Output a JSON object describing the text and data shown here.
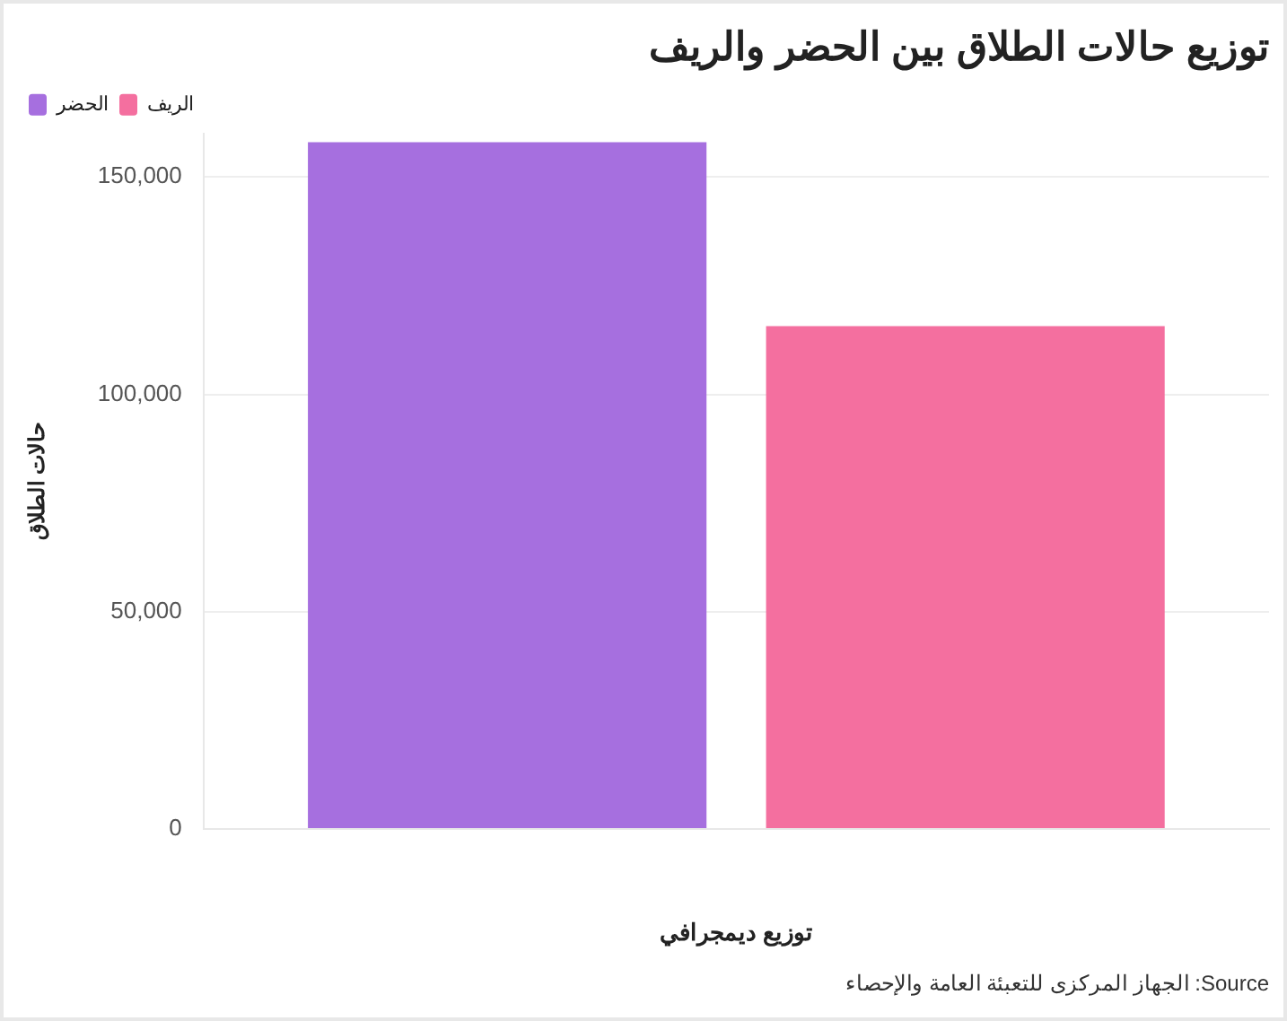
{
  "chart_data": {
    "type": "bar",
    "title": "توزيع حالات الطلاق بين الحضر والريف",
    "xlabel": "توزيع ديمجرافي",
    "ylabel": "حالات الطلاق",
    "categories": [
      null
    ],
    "series": [
      {
        "name": "الحضر",
        "color": "#a66fdf",
        "values": [
          158000
        ]
      },
      {
        "name": "الريف",
        "color": "#f46f9f",
        "values": [
          115700
        ]
      }
    ],
    "ylim": [
      0,
      160000
    ],
    "yticks": [
      {
        "value": 0,
        "label": "0"
      },
      {
        "value": 50000,
        "label": "50,000"
      },
      {
        "value": 100000,
        "label": "100,000"
      },
      {
        "value": 150000,
        "label": "150,000"
      }
    ],
    "grid": "y",
    "legend": "top left",
    "annotations": [
      "Source: الجهاز المركزى للتعبئة العامة والإحصاء"
    ]
  }
}
